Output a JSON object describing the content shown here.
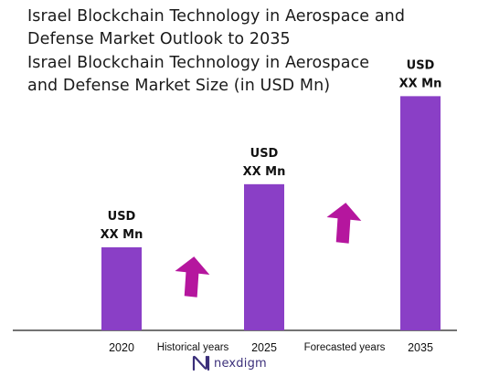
{
  "heading": {
    "title_line1": "Israel Blockchain Technology in Aerospace and",
    "title_line2": "Defense Market Outlook to 2035",
    "subtitle_line1": "Israel Blockchain Technology in Aerospace",
    "subtitle_line2": "and Defense Market Size (in USD Mn)"
  },
  "chart_data": {
    "type": "bar",
    "categories": [
      "2020",
      "2025",
      "2035"
    ],
    "values": [
      1.0,
      1.76,
      2.82
    ],
    "value_labels": [
      [
        "USD",
        "XX Mn"
      ],
      [
        "USD",
        "XX Mn"
      ],
      [
        "USD",
        "XX Mn"
      ]
    ],
    "period_labels": [
      "Historical years",
      "Forecasted years"
    ],
    "bar_color": "#8a3fc6",
    "arrow_color": "#b5169e",
    "grid": false
  },
  "brand": {
    "name": "nexdigm",
    "color": "#3b2f7a"
  }
}
